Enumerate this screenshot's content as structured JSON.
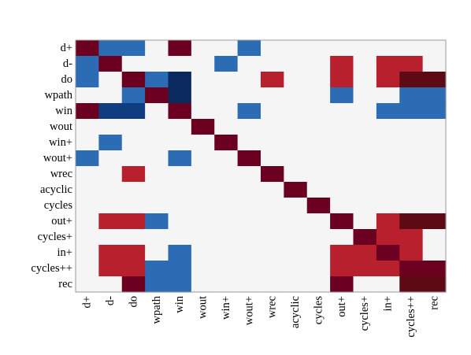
{
  "chart_data": {
    "type": "heatmap",
    "title": "",
    "xlabel": "",
    "ylabel": "",
    "labels": [
      "d+",
      "d-",
      "do",
      "wpath",
      "win",
      "wout",
      "win+",
      "wout+",
      "wrec",
      "acyclic",
      "cycles",
      "out+",
      "cycles+",
      "in+",
      "cycles++",
      "rec"
    ],
    "value_scale": [
      -3,
      3
    ],
    "colors": {
      "background": "#f5f5f5",
      "frame": "#9a9a9a",
      "-3": "#0a2a5e",
      "-2": "#0f3d80",
      "-1": "#2b6cb4",
      "1": "#b8202e",
      "2": "#6b0020",
      "3": "#5e0a14"
    },
    "matrix": [
      [
        2,
        -1,
        -1,
        0,
        2,
        0,
        0,
        -1,
        0,
        0,
        0,
        0,
        0,
        0,
        0,
        0
      ],
      [
        -1,
        2,
        0,
        0,
        0,
        0,
        -1,
        0,
        0,
        0,
        0,
        1,
        0,
        1,
        1,
        0
      ],
      [
        -1,
        0,
        2,
        -1,
        -3,
        0,
        0,
        0,
        1,
        0,
        0,
        1,
        0,
        1,
        3,
        3
      ],
      [
        0,
        0,
        -1,
        2,
        -3,
        0,
        0,
        0,
        0,
        0,
        0,
        -1,
        0,
        0,
        -1,
        -1
      ],
      [
        2,
        -2,
        -2,
        0,
        2,
        0,
        0,
        -1,
        0,
        0,
        0,
        0,
        0,
        -1,
        -1,
        -1
      ],
      [
        0,
        0,
        0,
        0,
        0,
        2,
        0,
        0,
        0,
        0,
        0,
        0,
        0,
        0,
        0,
        0
      ],
      [
        0,
        -1,
        0,
        0,
        0,
        0,
        2,
        0,
        0,
        0,
        0,
        0,
        0,
        0,
        0,
        0
      ],
      [
        -1,
        0,
        0,
        0,
        -1,
        0,
        0,
        2,
        0,
        0,
        0,
        0,
        0,
        0,
        0,
        0
      ],
      [
        0,
        0,
        1,
        0,
        0,
        0,
        0,
        0,
        2,
        0,
        0,
        0,
        0,
        0,
        0,
        0
      ],
      [
        0,
        0,
        0,
        0,
        0,
        0,
        0,
        0,
        0,
        2,
        0,
        0,
        0,
        0,
        0,
        0
      ],
      [
        0,
        0,
        0,
        0,
        0,
        0,
        0,
        0,
        0,
        0,
        2,
        0,
        0,
        0,
        0,
        0
      ],
      [
        0,
        1,
        1,
        -1,
        0,
        0,
        0,
        0,
        0,
        0,
        0,
        2,
        0,
        1,
        3,
        3
      ],
      [
        0,
        0,
        0,
        0,
        0,
        0,
        0,
        0,
        0,
        0,
        0,
        0,
        2,
        1,
        1,
        0
      ],
      [
        0,
        1,
        1,
        0,
        -1,
        0,
        0,
        0,
        0,
        0,
        0,
        1,
        1,
        2,
        1,
        0
      ],
      [
        0,
        1,
        1,
        -1,
        -1,
        0,
        0,
        0,
        0,
        0,
        0,
        1,
        1,
        1,
        2,
        2
      ],
      [
        0,
        0,
        2,
        -1,
        -1,
        0,
        0,
        0,
        0,
        0,
        0,
        2,
        0,
        0,
        3,
        3
      ]
    ]
  }
}
